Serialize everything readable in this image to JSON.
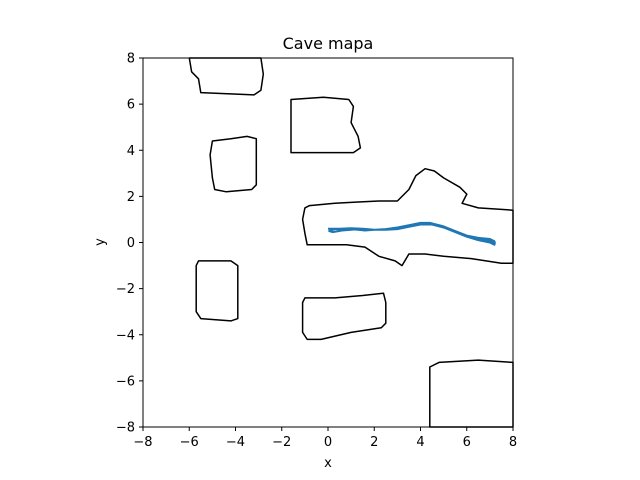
{
  "chart_data": {
    "type": "line",
    "title": "Cave mapa",
    "xlabel": "x",
    "ylabel": "y",
    "xlim": [
      -8,
      8
    ],
    "ylim": [
      -8,
      8
    ],
    "xticks": [
      -8,
      -6,
      -4,
      -2,
      0,
      2,
      4,
      6,
      8
    ],
    "yticks": [
      -8,
      -6,
      -4,
      -2,
      0,
      2,
      4,
      6,
      8
    ],
    "grid": false,
    "colors": {
      "obstacle": "#000000",
      "trajectory": "#1f77b4"
    },
    "obstacles": [
      {
        "name": "obstacle-top-left",
        "points": [
          [
            -6,
            8
          ],
          [
            -5.9,
            7.4
          ],
          [
            -5.6,
            7.1
          ],
          [
            -5.5,
            6.5
          ],
          [
            -3.2,
            6.4
          ],
          [
            -2.9,
            6.6
          ],
          [
            -2.8,
            7.3
          ],
          [
            -2.9,
            8
          ]
        ]
      },
      {
        "name": "obstacle-top-center",
        "points": [
          [
            -1.6,
            6.2
          ],
          [
            -0.2,
            6.3
          ],
          [
            0.9,
            6.2
          ],
          [
            1.1,
            5.9
          ],
          [
            1.0,
            5.2
          ],
          [
            1.3,
            4.6
          ],
          [
            1.4,
            4.1
          ],
          [
            1.1,
            3.9
          ],
          [
            -1.6,
            3.9
          ],
          [
            -1.6,
            5.0
          ]
        ]
      },
      {
        "name": "obstacle-left-mid",
        "points": [
          [
            -5.0,
            4.4
          ],
          [
            -4.2,
            4.5
          ],
          [
            -3.5,
            4.6
          ],
          [
            -3.1,
            4.5
          ],
          [
            -3.1,
            2.5
          ],
          [
            -3.3,
            2.3
          ],
          [
            -4.4,
            2.2
          ],
          [
            -4.9,
            2.3
          ],
          [
            -5.0,
            2.8
          ],
          [
            -5.1,
            3.8
          ]
        ]
      },
      {
        "name": "obstacle-left-lower",
        "points": [
          [
            -5.6,
            -0.8
          ],
          [
            -4.2,
            -0.8
          ],
          [
            -3.9,
            -1.0
          ],
          [
            -3.9,
            -3.3
          ],
          [
            -4.2,
            -3.4
          ],
          [
            -5.5,
            -3.3
          ],
          [
            -5.7,
            -3.0
          ],
          [
            -5.7,
            -1.0
          ]
        ]
      },
      {
        "name": "obstacle-center-lower",
        "points": [
          [
            -1.0,
            -2.4
          ],
          [
            0.3,
            -2.4
          ],
          [
            1.5,
            -2.3
          ],
          [
            2.4,
            -2.2
          ],
          [
            2.5,
            -2.6
          ],
          [
            2.5,
            -3.5
          ],
          [
            2.3,
            -3.7
          ],
          [
            1.0,
            -3.9
          ],
          [
            -0.3,
            -4.2
          ],
          [
            -0.9,
            -4.2
          ],
          [
            -1.1,
            -3.9
          ],
          [
            -1.1,
            -2.6
          ]
        ]
      },
      {
        "name": "obstacle-bottom-right",
        "points": [
          [
            4.4,
            -8
          ],
          [
            4.4,
            -5.4
          ],
          [
            4.8,
            -5.2
          ],
          [
            6.5,
            -5.1
          ],
          [
            8,
            -5.2
          ],
          [
            8,
            -8
          ]
        ]
      },
      {
        "name": "obstacle-corridor",
        "points": [
          [
            -1.0,
            1.5
          ],
          [
            -0.8,
            1.6
          ],
          [
            0.3,
            1.7
          ],
          [
            1.2,
            1.75
          ],
          [
            2.2,
            1.8
          ],
          [
            3.0,
            1.8
          ],
          [
            3.5,
            2.3
          ],
          [
            3.8,
            2.9
          ],
          [
            4.2,
            3.2
          ],
          [
            4.6,
            3.1
          ],
          [
            5.0,
            2.8
          ],
          [
            5.7,
            2.4
          ],
          [
            6.0,
            2.1
          ],
          [
            5.8,
            1.7
          ],
          [
            6.5,
            1.5
          ],
          [
            8,
            1.4
          ],
          [
            8,
            -0.9
          ],
          [
            7.5,
            -0.9
          ],
          [
            6.2,
            -0.7
          ],
          [
            5.0,
            -0.6
          ],
          [
            4.2,
            -0.5
          ],
          [
            3.5,
            -0.5
          ],
          [
            3.2,
            -1.0
          ],
          [
            2.9,
            -0.8
          ],
          [
            2.2,
            -0.6
          ],
          [
            1.6,
            -0.2
          ],
          [
            0.8,
            -0.1
          ],
          [
            -0.2,
            -0.1
          ],
          [
            -0.9,
            -0.1
          ],
          [
            -1.0,
            0.4
          ],
          [
            -1.1,
            1.0
          ]
        ]
      }
    ],
    "series": [
      {
        "points": [
          [
            0,
            0.6
          ],
          [
            0.5,
            0.6
          ],
          [
            1.0,
            0.62
          ],
          [
            1.5,
            0.6
          ],
          [
            2.0,
            0.55
          ],
          [
            2.5,
            0.58
          ],
          [
            3.0,
            0.65
          ],
          [
            3.5,
            0.75
          ],
          [
            4.0,
            0.85
          ],
          [
            4.4,
            0.85
          ],
          [
            5.0,
            0.7
          ],
          [
            5.5,
            0.5
          ],
          [
            6.0,
            0.3
          ],
          [
            6.5,
            0.2
          ],
          [
            7.0,
            0.15
          ],
          [
            7.2,
            0.05
          ],
          [
            7.2,
            -0.1
          ],
          [
            7.0,
            0.0
          ],
          [
            6.5,
            0.1
          ],
          [
            6.0,
            0.25
          ],
          [
            5.5,
            0.45
          ],
          [
            5.0,
            0.65
          ],
          [
            4.5,
            0.78
          ],
          [
            4.0,
            0.78
          ],
          [
            3.5,
            0.68
          ],
          [
            3.0,
            0.58
          ],
          [
            2.5,
            0.55
          ],
          [
            2.0,
            0.55
          ],
          [
            1.5,
            0.6
          ],
          [
            1.0,
            0.55
          ],
          [
            0.6,
            0.52
          ],
          [
            0.2,
            0.45
          ],
          [
            0.05,
            0.5
          ],
          [
            0.3,
            0.58
          ],
          [
            0.9,
            0.58
          ],
          [
            1.3,
            0.55
          ],
          [
            1.6,
            0.52
          ],
          [
            2.0,
            0.55
          ],
          [
            2.5,
            0.58
          ],
          [
            3.2,
            0.65
          ],
          [
            3.9,
            0.8
          ],
          [
            4.5,
            0.8
          ],
          [
            5.2,
            0.6
          ],
          [
            5.8,
            0.35
          ],
          [
            6.4,
            0.18
          ],
          [
            7.0,
            0.08
          ],
          [
            7.25,
            -0.05
          ]
        ]
      }
    ]
  }
}
